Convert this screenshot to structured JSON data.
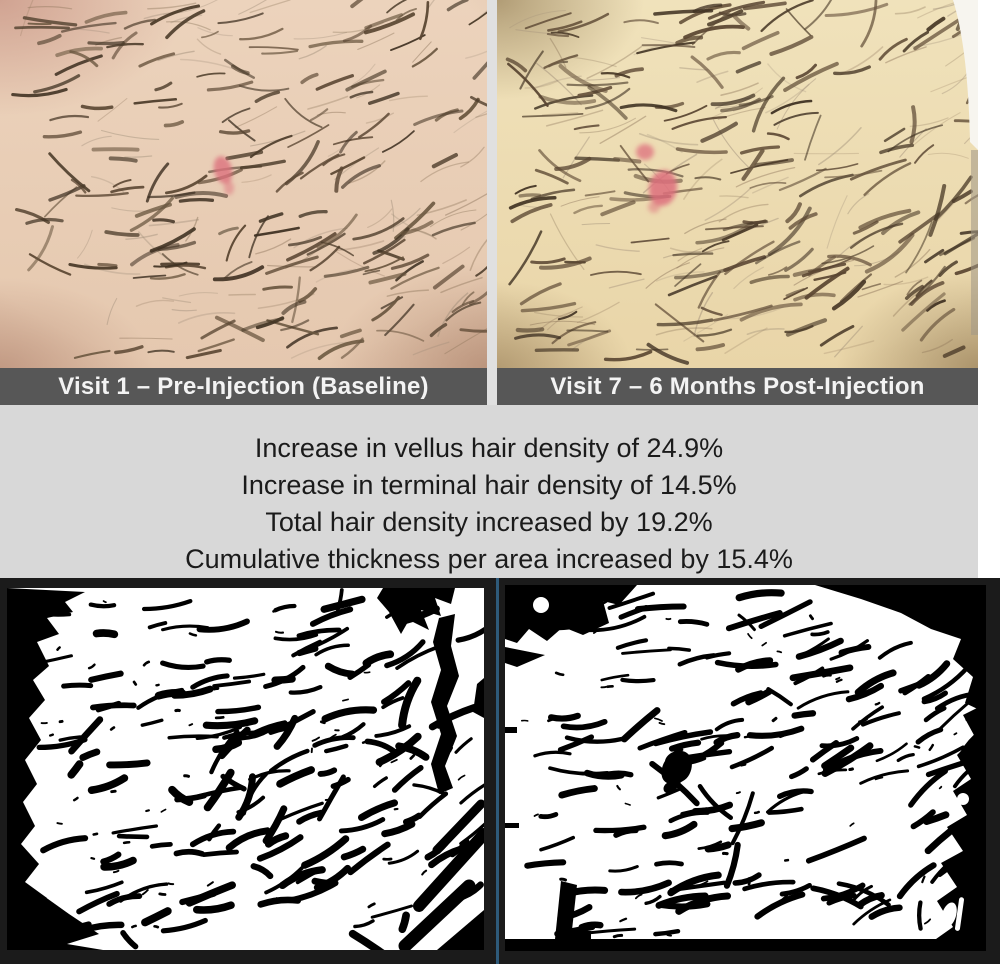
{
  "photos": {
    "baseline": {
      "caption": "Visit 1 – Pre-Injection (Baseline)"
    },
    "post": {
      "caption": "Visit 7 – 6 Months Post-Injection"
    }
  },
  "stats": {
    "lines": [
      "Increase in vellus hair density of 24.9%",
      "Increase in terminal hair density of 14.5%",
      "Total hair density increased by 19.2%",
      "Cumulative thickness per area increased by 15.4%"
    ]
  },
  "colors": {
    "page_bg": "#ffffff",
    "caption_bg": "#575757",
    "caption_text": "#f3f3f3",
    "band_bg": "#d8d8d8",
    "band_text": "#1b1b1b",
    "frame_bg": "#1b1b1b",
    "divider": "#2e5a7a",
    "panel_bg": "#ffffff",
    "ink": "#000000",
    "skin_left": "#ecd3bc",
    "skin_right": "#f0e2bb",
    "hair_dark": "#4a3a28",
    "hair_light": "#8a7258",
    "red_mark": "#dd6f7c",
    "device_gray": "#a09787",
    "wedge_white": "#f7f5ef"
  }
}
